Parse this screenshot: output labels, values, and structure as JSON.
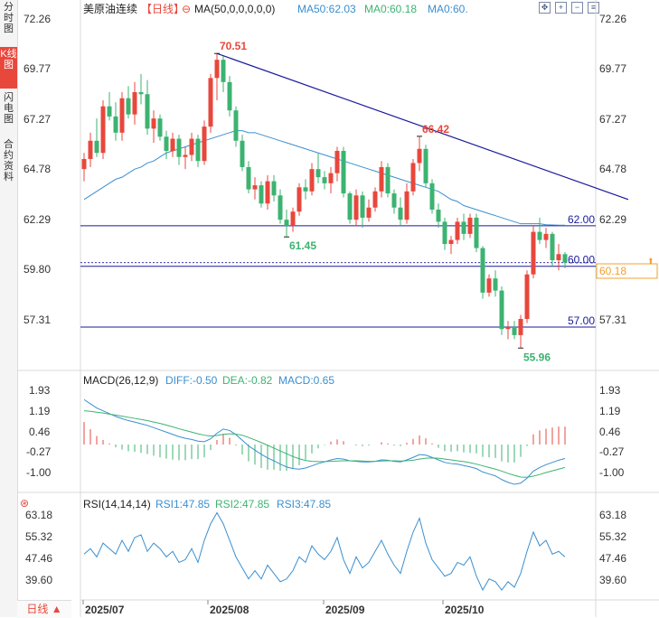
{
  "sidebar": {
    "tabs": [
      {
        "label": "分时图",
        "active": false
      },
      {
        "label": "K线图",
        "active": true
      },
      {
        "label": "闪电图",
        "active": false
      },
      {
        "label": "合约资料",
        "active": false
      }
    ],
    "period_label": "日线 ▲"
  },
  "header": {
    "symbol": "美原油连续",
    "period": "【日线】",
    "ma_label": "MA(50,0,0,0,0,0)",
    "ma50": "MA50:62.03",
    "ma0a": "MA0:60.18",
    "ma0b": "MA0:60."
  },
  "toolbar": {
    "icons": [
      "fullscreen-icon",
      "zoom-in-icon",
      "zoom-out-icon",
      "settings-icon"
    ]
  },
  "price_ticks": [
    "72.26",
    "69.77",
    "67.27",
    "64.78",
    "62.29",
    "59.80",
    "57.31"
  ],
  "current_price": "60.18",
  "hlines": [
    {
      "label": "62.00",
      "value": 62.0
    },
    {
      "label": "60.00",
      "value": 60.0
    },
    {
      "label": "57.00",
      "value": 57.0
    }
  ],
  "annotations": [
    {
      "text": "70.51",
      "value": 70.51,
      "color": "#e8473c"
    },
    {
      "text": "66.42",
      "value": 66.42,
      "color": "#e8473c"
    },
    {
      "text": "61.45",
      "value": 61.45,
      "color": "#3cb371"
    },
    {
      "text": "55.96",
      "value": 55.96,
      "color": "#3cb371"
    }
  ],
  "macd_header": {
    "name": "MACD(26,12,9)",
    "diff": "DIFF:-0.50",
    "dea": "DEA:-0.82",
    "macd": "MACD:0.65"
  },
  "macd_ticks": [
    "1.93",
    "1.19",
    "0.46",
    "-0.27",
    "-1.00"
  ],
  "rsi_header": {
    "name": "RSI(14,14,14)",
    "rsi1": "RSI1:47.85",
    "rsi2": "RSI2:47.85",
    "rsi3": "RSI3:47.85"
  },
  "rsi_ticks": [
    "63.18",
    "55.32",
    "47.46",
    "39.60"
  ],
  "x_ticks": [
    "2025/07",
    "2025/08",
    "2025/09",
    "2025/10"
  ],
  "colors": {
    "up": "#e8473c",
    "down": "#3cb371",
    "ma50": "#3a8fd0",
    "trend": "#1a1a9c",
    "diff": "#3a8fd0",
    "dea": "#3cb371"
  },
  "chart_data": {
    "type": "candlestick",
    "instrument": "美原油连续",
    "ylim": [
      55.5,
      72.5
    ],
    "candles": [
      [
        64.8,
        65.6,
        64.2,
        65.3
      ],
      [
        65.3,
        66.6,
        64.9,
        66.2
      ],
      [
        66.2,
        67.3,
        65.4,
        65.6
      ],
      [
        65.6,
        68.2,
        65.3,
        67.9
      ],
      [
        67.9,
        68.6,
        67.2,
        67.4
      ],
      [
        67.4,
        68.1,
        66.2,
        66.6
      ],
      [
        66.6,
        68.6,
        66.2,
        68.3
      ],
      [
        68.3,
        68.9,
        67.3,
        67.5
      ],
      [
        67.5,
        69.1,
        67.0,
        68.6
      ],
      [
        68.6,
        69.5,
        68.0,
        68.5
      ],
      [
        68.5,
        69.2,
        66.5,
        66.8
      ],
      [
        66.8,
        67.7,
        66.1,
        67.3
      ],
      [
        67.3,
        67.5,
        66.2,
        66.4
      ],
      [
        66.4,
        66.7,
        65.3,
        65.7
      ],
      [
        65.7,
        66.6,
        65.4,
        66.3
      ],
      [
        66.3,
        66.5,
        65.0,
        65.4
      ],
      [
        65.4,
        65.9,
        64.8,
        65.5
      ],
      [
        65.5,
        66.6,
        65.2,
        66.3
      ],
      [
        66.3,
        66.5,
        64.9,
        65.2
      ],
      [
        65.2,
        67.2,
        65.0,
        66.9
      ],
      [
        66.9,
        69.5,
        66.6,
        69.3
      ],
      [
        69.3,
        70.51,
        68.2,
        70.2
      ],
      [
        70.2,
        70.4,
        68.6,
        69.1
      ],
      [
        69.1,
        69.4,
        67.4,
        67.7
      ],
      [
        67.7,
        67.9,
        65.9,
        66.2
      ],
      [
        66.2,
        66.5,
        64.7,
        64.9
      ],
      [
        64.9,
        65.2,
        63.6,
        63.8
      ],
      [
        63.8,
        64.4,
        63.3,
        64.0
      ],
      [
        64.0,
        64.2,
        62.9,
        63.1
      ],
      [
        63.1,
        64.5,
        62.8,
        64.2
      ],
      [
        64.2,
        64.5,
        63.2,
        63.5
      ],
      [
        63.5,
        63.8,
        62.1,
        62.3
      ],
      [
        62.3,
        62.8,
        61.45,
        62.0
      ],
      [
        62.0,
        62.9,
        61.7,
        62.7
      ],
      [
        62.7,
        64.1,
        62.5,
        63.9
      ],
      [
        63.9,
        64.3,
        63.3,
        63.7
      ],
      [
        63.7,
        65.1,
        63.5,
        64.8
      ],
      [
        64.8,
        65.6,
        64.1,
        64.4
      ],
      [
        64.4,
        64.7,
        63.8,
        64.1
      ],
      [
        64.1,
        64.9,
        63.6,
        64.6
      ],
      [
        64.6,
        65.9,
        64.2,
        65.7
      ],
      [
        65.7,
        65.9,
        63.4,
        63.6
      ],
      [
        63.6,
        63.7,
        62.1,
        62.3
      ],
      [
        62.3,
        63.8,
        62.0,
        63.5
      ],
      [
        63.5,
        63.7,
        61.9,
        62.4
      ],
      [
        62.4,
        63.3,
        62.2,
        62.9
      ],
      [
        62.9,
        63.9,
        62.7,
        63.7
      ],
      [
        63.7,
        65.2,
        63.4,
        64.9
      ],
      [
        64.9,
        65.1,
        63.4,
        63.6
      ],
      [
        63.6,
        63.8,
        62.6,
        62.9
      ],
      [
        62.9,
        63.4,
        62.0,
        62.3
      ],
      [
        62.3,
        64.1,
        62.1,
        63.7
      ],
      [
        63.7,
        65.3,
        63.5,
        65.1
      ],
      [
        65.1,
        66.42,
        64.7,
        65.8
      ],
      [
        65.8,
        66.0,
        63.9,
        64.1
      ],
      [
        64.1,
        64.3,
        62.6,
        62.8
      ],
      [
        62.8,
        63.1,
        61.9,
        62.2
      ],
      [
        62.2,
        62.4,
        60.8,
        61.1
      ],
      [
        61.1,
        61.5,
        60.6,
        61.3
      ],
      [
        61.3,
        62.4,
        61.1,
        62.2
      ],
      [
        62.2,
        62.6,
        61.3,
        61.6
      ],
      [
        61.6,
        62.6,
        61.4,
        62.4
      ],
      [
        62.4,
        62.6,
        60.7,
        60.9
      ],
      [
        60.9,
        61.0,
        58.4,
        58.7
      ],
      [
        58.7,
        59.6,
        58.5,
        59.4
      ],
      [
        59.4,
        59.8,
        58.5,
        58.8
      ],
      [
        58.8,
        59.0,
        56.6,
        56.9
      ],
      [
        56.9,
        57.3,
        56.4,
        57.0
      ],
      [
        57.0,
        57.3,
        56.4,
        56.6
      ],
      [
        56.6,
        57.6,
        55.96,
        57.4
      ],
      [
        57.4,
        59.8,
        57.2,
        59.6
      ],
      [
        59.6,
        62.0,
        59.4,
        61.7
      ],
      [
        61.7,
        62.4,
        61.1,
        61.3
      ],
      [
        61.3,
        61.9,
        60.9,
        61.6
      ],
      [
        61.6,
        61.7,
        60.0,
        60.3
      ],
      [
        60.3,
        61.1,
        59.8,
        60.6
      ],
      [
        60.6,
        60.7,
        59.9,
        60.18
      ]
    ],
    "ma50": [
      63.3,
      63.5,
      63.7,
      63.9,
      64.1,
      64.3,
      64.4,
      64.6,
      64.8,
      64.9,
      65.1,
      65.2,
      65.4,
      65.6,
      65.7,
      65.8,
      65.9,
      66.0,
      66.1,
      66.2,
      66.3,
      66.4,
      66.5,
      66.6,
      66.7,
      66.7,
      66.6,
      66.6,
      66.5,
      66.4,
      66.3,
      66.2,
      66.1,
      66.0,
      65.9,
      65.8,
      65.7,
      65.6,
      65.5,
      65.4,
      65.3,
      65.2,
      65.1,
      65.0,
      64.9,
      64.8,
      64.7,
      64.6,
      64.5,
      64.4,
      64.3,
      64.2,
      64.1,
      64.0,
      63.9,
      63.8,
      63.7,
      63.5,
      63.3,
      63.2,
      63.0,
      62.9,
      62.8,
      62.7,
      62.6,
      62.5,
      62.4,
      62.3,
      62.2,
      62.1,
      62.1,
      62.1,
      62.1,
      62.05,
      62.04,
      62.03,
      62.03
    ],
    "macd_ylim": [
      -1.6,
      2.1
    ],
    "diff": [
      1.6,
      1.45,
      1.3,
      1.2,
      1.1,
      1.0,
      0.92,
      0.85,
      0.8,
      0.74,
      0.68,
      0.6,
      0.52,
      0.44,
      0.36,
      0.28,
      0.22,
      0.18,
      0.12,
      0.1,
      0.2,
      0.4,
      0.55,
      0.5,
      0.35,
      0.15,
      -0.05,
      -0.2,
      -0.35,
      -0.48,
      -0.58,
      -0.7,
      -0.8,
      -0.86,
      -0.88,
      -0.84,
      -0.76,
      -0.68,
      -0.62,
      -0.55,
      -0.5,
      -0.52,
      -0.58,
      -0.6,
      -0.62,
      -0.62,
      -0.6,
      -0.55,
      -0.56,
      -0.6,
      -0.62,
      -0.55,
      -0.46,
      -0.36,
      -0.38,
      -0.46,
      -0.55,
      -0.64,
      -0.68,
      -0.7,
      -0.75,
      -0.8,
      -0.86,
      -0.98,
      -1.05,
      -1.12,
      -1.25,
      -1.35,
      -1.42,
      -1.38,
      -1.2,
      -0.95,
      -0.82,
      -0.72,
      -0.64,
      -0.56,
      -0.5
    ],
    "dea": [
      1.2,
      1.18,
      1.15,
      1.12,
      1.08,
      1.05,
      1.01,
      0.97,
      0.93,
      0.89,
      0.85,
      0.8,
      0.75,
      0.69,
      0.63,
      0.56,
      0.5,
      0.44,
      0.38,
      0.33,
      0.3,
      0.32,
      0.36,
      0.38,
      0.37,
      0.33,
      0.25,
      0.16,
      0.07,
      -0.03,
      -0.13,
      -0.23,
      -0.33,
      -0.43,
      -0.51,
      -0.57,
      -0.6,
      -0.61,
      -0.61,
      -0.6,
      -0.59,
      -0.58,
      -0.58,
      -0.58,
      -0.59,
      -0.6,
      -0.6,
      -0.59,
      -0.58,
      -0.58,
      -0.59,
      -0.58,
      -0.56,
      -0.52,
      -0.49,
      -0.48,
      -0.49,
      -0.52,
      -0.55,
      -0.58,
      -0.61,
      -0.65,
      -0.7,
      -0.76,
      -0.82,
      -0.88,
      -0.95,
      -1.03,
      -1.1,
      -1.16,
      -1.17,
      -1.13,
      -1.07,
      -1.0,
      -0.94,
      -0.88,
      -0.82
    ],
    "rsi_ylim": [
      36.0,
      66.0
    ],
    "rsi": [
      49,
      51,
      48,
      53,
      51,
      49,
      54,
      50,
      55,
      56,
      50,
      53,
      51,
      48,
      50,
      46,
      47,
      51,
      46,
      54,
      60,
      64,
      60,
      54,
      48,
      44,
      40,
      43,
      40,
      45,
      42,
      39,
      40,
      43,
      48,
      46,
      52,
      49,
      47,
      50,
      55,
      47,
      42,
      48,
      44,
      46,
      50,
      54,
      49,
      45,
      42,
      50,
      57,
      62,
      53,
      47,
      44,
      41,
      42,
      46,
      45,
      48,
      41,
      36,
      40,
      39,
      36,
      39,
      37,
      42,
      50,
      57,
      52,
      54,
      49,
      50,
      48
    ],
    "trendline": {
      "from": {
        "index": 21,
        "value": 70.51
      },
      "to": {
        "index": 86,
        "value": 63.3
      }
    }
  }
}
